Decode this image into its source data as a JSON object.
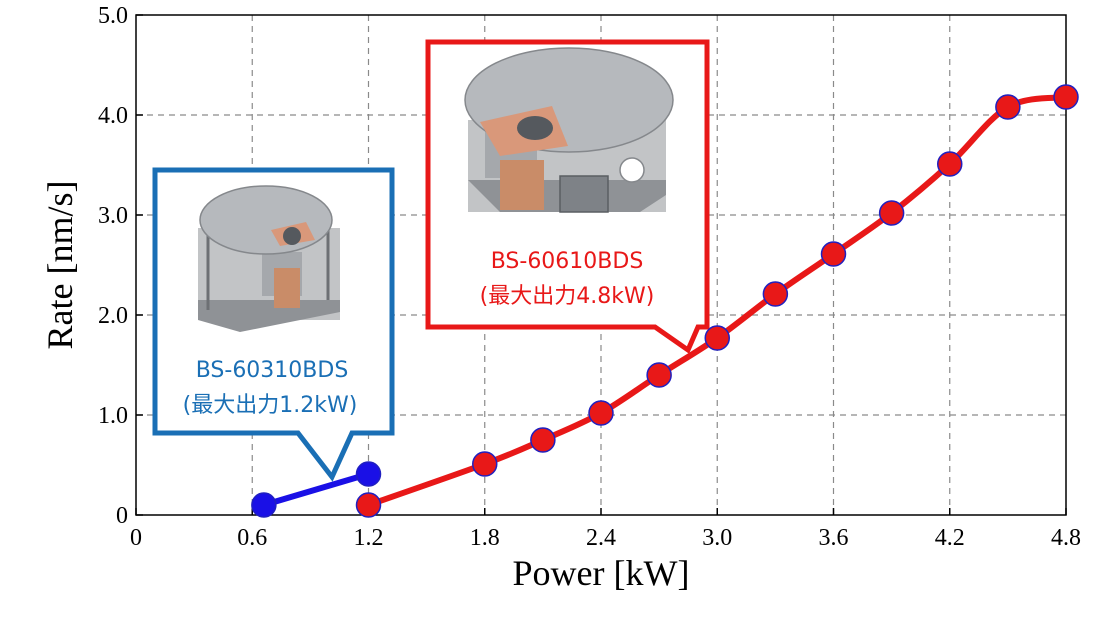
{
  "chart_data": {
    "type": "line",
    "xlabel": "Power [kW]",
    "ylabel": "Rate [nm/s]",
    "xlim": [
      0,
      4.8
    ],
    "ylim": [
      0,
      5.0
    ],
    "x_ticks": [
      0,
      0.6,
      1.2,
      1.8,
      2.4,
      3.0,
      3.6,
      4.2,
      4.8
    ],
    "x_tick_labels": [
      "0",
      "0.6",
      "1.2",
      "1.8",
      "2.4",
      "3.0",
      "3.6",
      "4.2",
      "4.8"
    ],
    "y_ticks": [
      0,
      1,
      2,
      3,
      4,
      5
    ],
    "y_tick_labels": [
      "0",
      "1.0",
      "2.0",
      "3.0",
      "4.0",
      "5.0"
    ],
    "grid": true,
    "series": [
      {
        "color": "#1a10e6",
        "x": [
          0.66,
          1.2
        ],
        "y": [
          0.1,
          0.41
        ]
      },
      {
        "color": "#e81818",
        "x": [
          1.2,
          1.8,
          2.1,
          2.4,
          2.7,
          3.0,
          3.3,
          3.6,
          3.9,
          4.2,
          4.5,
          4.8
        ],
        "y": [
          0.1,
          0.51,
          0.75,
          1.02,
          1.4,
          1.77,
          2.21,
          2.61,
          3.02,
          3.51,
          4.08,
          4.18
        ]
      }
    ]
  },
  "callouts": {
    "small": {
      "model": "BS-60310BDS",
      "power": "(最大出力1.2kW)",
      "color": "#1a6fb5"
    },
    "large": {
      "model": "BS-60610BDS",
      "power": "(最大出力4.8kW)",
      "color": "#e81818"
    }
  }
}
